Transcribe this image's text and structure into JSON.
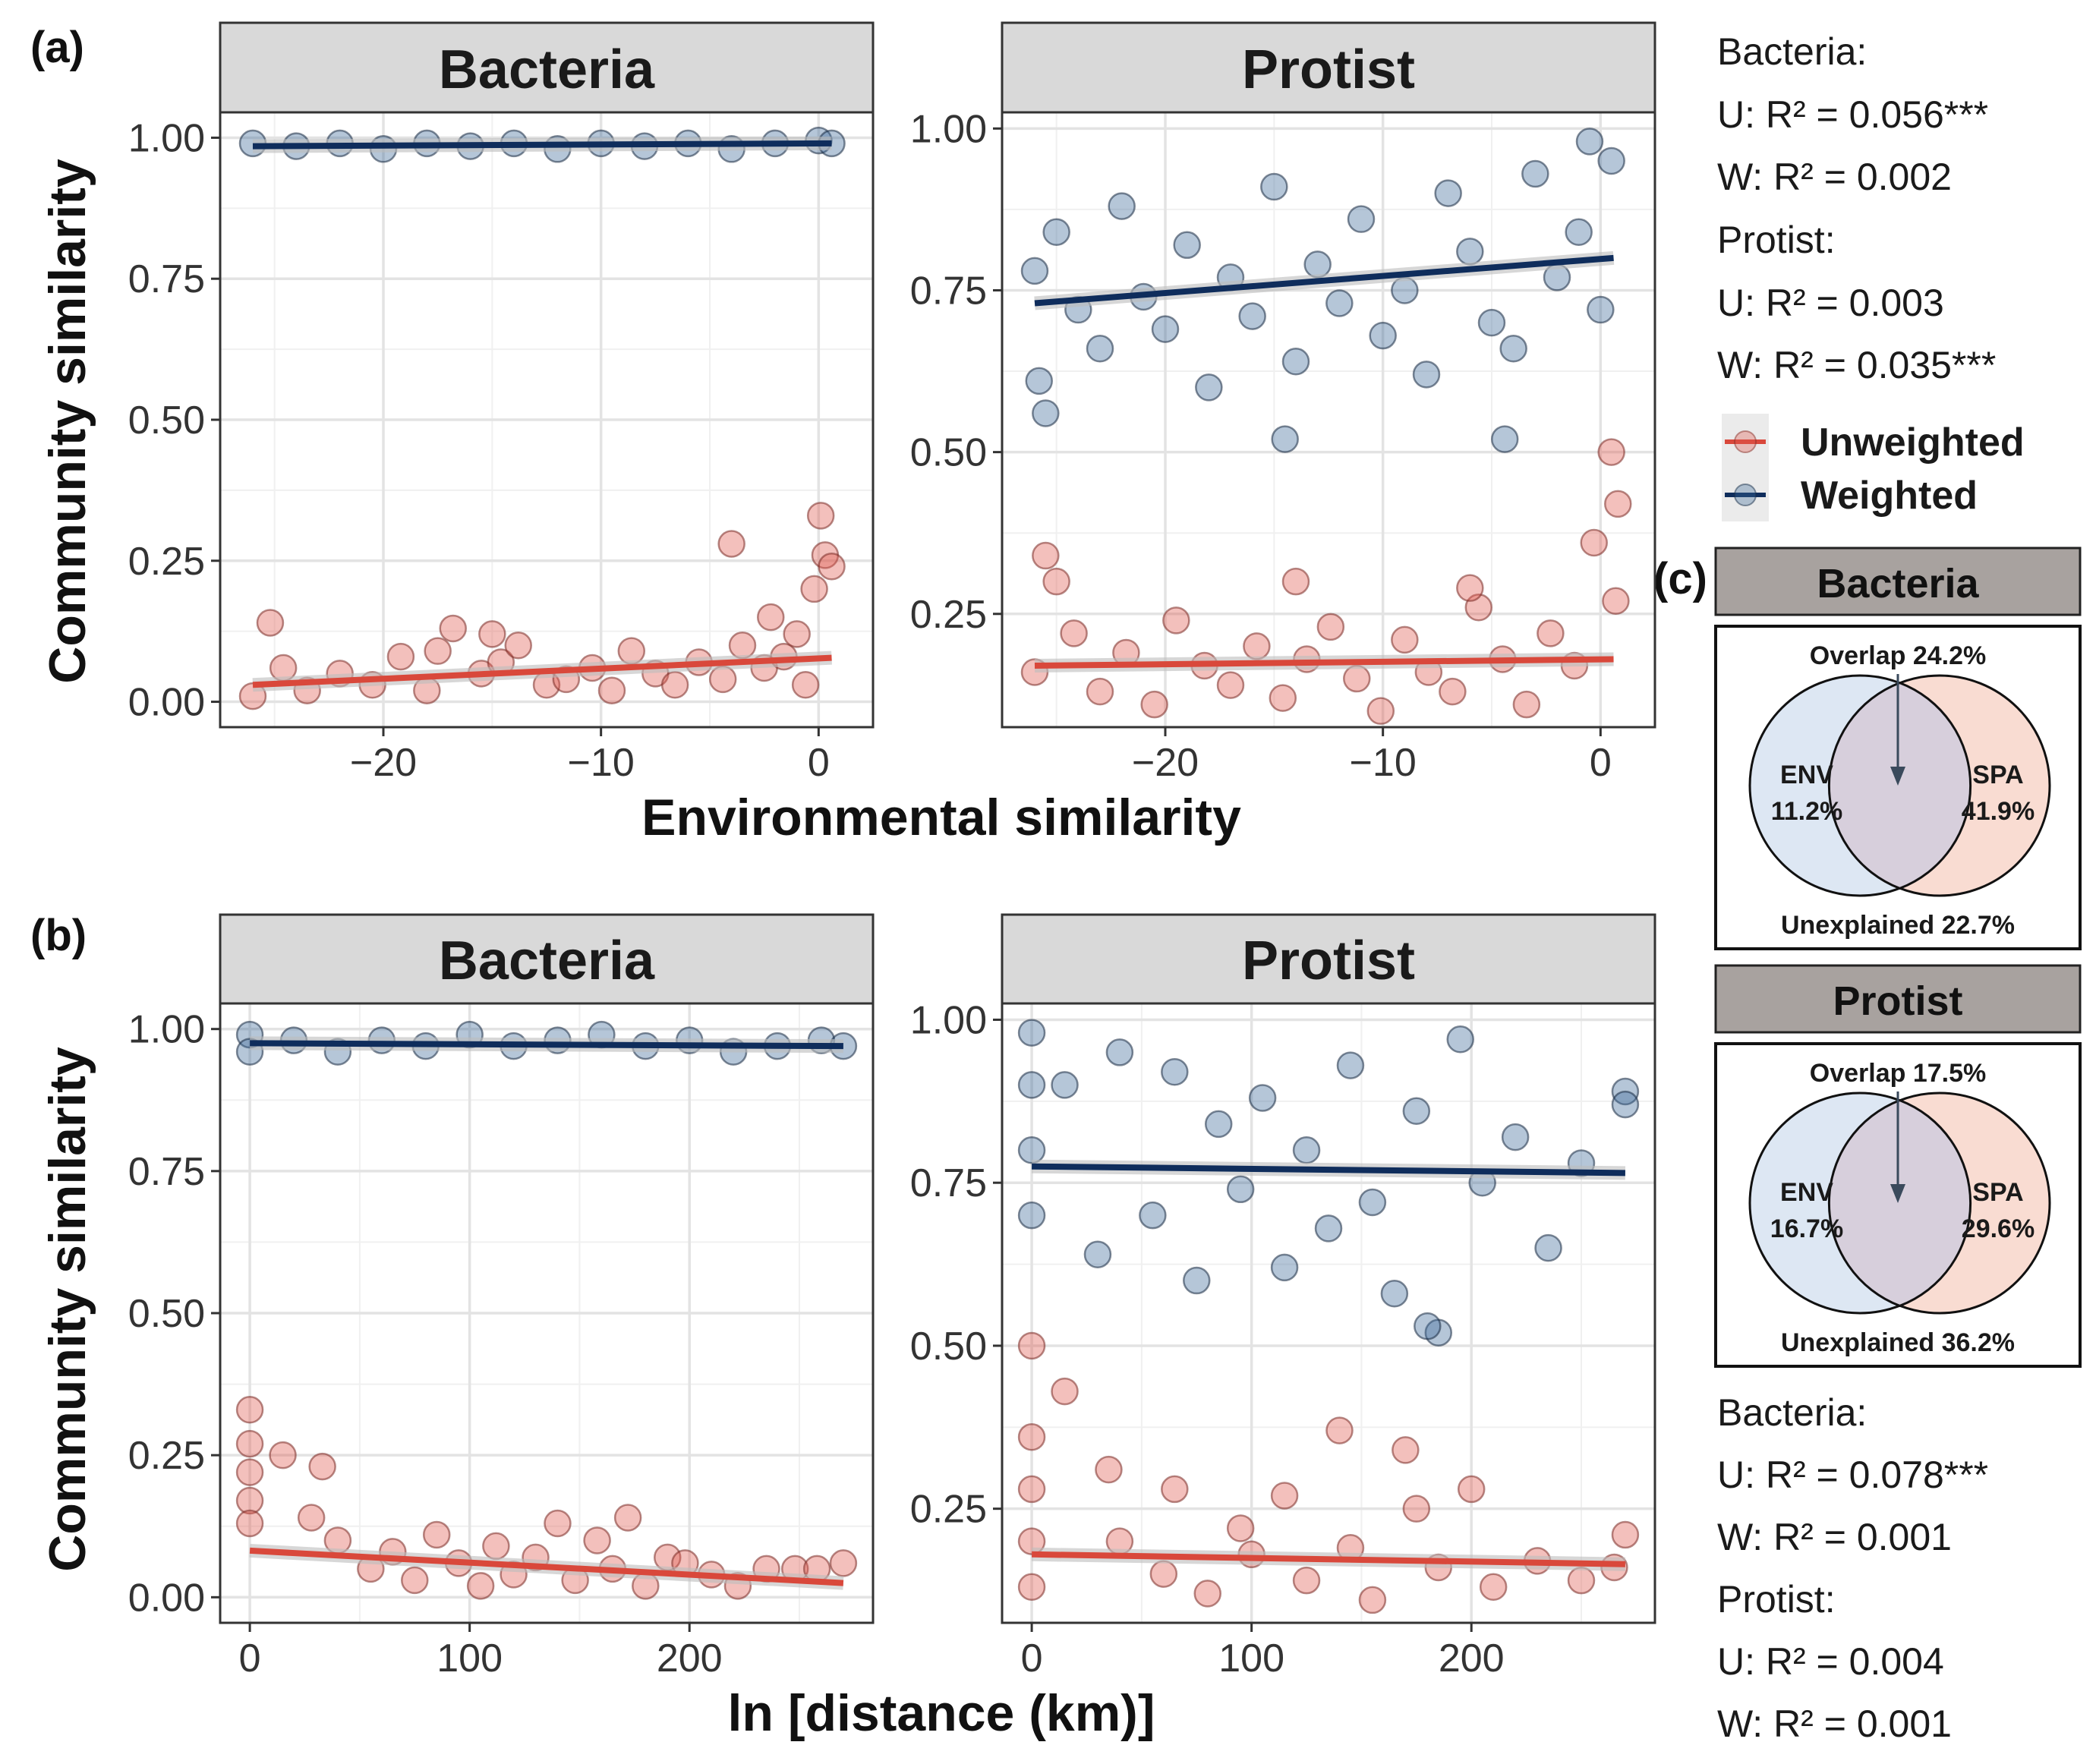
{
  "colors": {
    "unweighted": "#e05a4e",
    "unweighted_line": "#d9483b",
    "weighted": "#3d6a99",
    "weighted_line": "#0f2d5c",
    "env_fill": "#dde7f3",
    "spa_fill": "#f9dcd2",
    "overlap_fill": "#d7cfdc"
  },
  "labels": {
    "panel_a": "(a)",
    "panel_b": "(b)",
    "panel_c": "(c)",
    "ylabel": "Community similarity",
    "xlabel_a": "Environmental similarity",
    "xlabel_b": "ln [distance (km)]"
  },
  "stats_a": {
    "bacteria_head": "Bacteria:",
    "bacteria_u": "U: R² = 0.056***",
    "bacteria_w": "W: R² = 0.002",
    "protist_head": "Protist:",
    "protist_u": "U: R² = 0.003",
    "protist_w": "W: R² = 0.035***"
  },
  "stats_b": {
    "bacteria_head": "Bacteria:",
    "bacteria_u": "U: R² = 0.078***",
    "bacteria_w": "W: R² = 0.001",
    "protist_head": "Protist:",
    "protist_u": "U: R² = 0.004",
    "protist_w": "W: R² = 0.001"
  },
  "legend": {
    "unweighted": "Unweighted",
    "weighted": "Weighted"
  },
  "venn": [
    {
      "title": "Bacteria",
      "overlap": "Overlap 24.2%",
      "env": "ENV",
      "env_val": "11.2%",
      "spa": "SPA",
      "spa_val": "41.9%",
      "unexplained": "Unexplained 22.7%"
    },
    {
      "title": "Protist",
      "overlap": "Overlap 17.5%",
      "env": "ENV",
      "env_val": "16.7%",
      "spa": "SPA",
      "spa_val": "29.6%",
      "unexplained": "Unexplained 36.2%"
    }
  ],
  "chart_data": [
    {
      "id": "a_bacteria",
      "type": "scatter",
      "title": "Bacteria",
      "xlabel": "Environmental similarity",
      "ylabel": "Community similarity",
      "xlim": [
        -27.5,
        2.5
      ],
      "ylim": [
        -0.045,
        1.045
      ],
      "xticks": [
        -20,
        -10,
        0
      ],
      "xtick_labels": [
        "−20",
        "−10",
        "0"
      ],
      "yticks": [
        0,
        0.25,
        0.5,
        0.75,
        1.0
      ],
      "ytick_labels": [
        "0.00",
        "0.25",
        "0.50",
        "0.75",
        "1.00"
      ],
      "series": [
        {
          "name": "Unweighted",
          "x": [
            -26,
            -25.2,
            -24.6,
            -23.5,
            -22,
            -20.5,
            -19.2,
            -18,
            -16.8,
            -15.5,
            -14.6,
            -13.8,
            -12.5,
            -11.6,
            -10.4,
            -9.5,
            -8.6,
            -7.5,
            -6.6,
            -5.5,
            -4.4,
            -3.5,
            -2.5,
            -1.6,
            -0.6,
            -0.2,
            0.3,
            0.6,
            -4,
            -2.2,
            -1,
            0.1,
            -15,
            -17.5
          ],
          "y": [
            0.01,
            0.14,
            0.06,
            0.02,
            0.05,
            0.03,
            0.08,
            0.02,
            0.13,
            0.05,
            0.07,
            0.1,
            0.03,
            0.04,
            0.06,
            0.02,
            0.09,
            0.05,
            0.03,
            0.07,
            0.04,
            0.1,
            0.06,
            0.08,
            0.03,
            0.2,
            0.26,
            0.24,
            0.28,
            0.15,
            0.12,
            0.33,
            0.12,
            0.09
          ],
          "fit": [
            [
              -26,
              0.03
            ],
            [
              0.6,
              0.078
            ]
          ]
        },
        {
          "name": "Weighted",
          "x": [
            -26,
            -24,
            -22,
            -20,
            -18,
            -16,
            -14,
            -12,
            -10,
            -8,
            -6,
            -4,
            -2,
            0,
            0.6
          ],
          "y": [
            0.99,
            0.985,
            0.99,
            0.98,
            0.99,
            0.985,
            0.99,
            0.98,
            0.99,
            0.985,
            0.99,
            0.98,
            0.99,
            0.995,
            0.99
          ],
          "fit": [
            [
              -26,
              0.985
            ],
            [
              0.6,
              0.99
            ]
          ]
        }
      ]
    },
    {
      "id": "a_protist",
      "type": "scatter",
      "title": "Protist",
      "xlabel": "Environmental similarity",
      "ylabel": "Community similarity",
      "xlim": [
        -27.5,
        2.5
      ],
      "ylim": [
        0.075,
        1.025
      ],
      "xticks": [
        -20,
        -10,
        0
      ],
      "xtick_labels": [
        "−20",
        "−10",
        "0"
      ],
      "yticks": [
        0.25,
        0.5,
        0.75,
        1.0
      ],
      "ytick_labels": [
        "0.25",
        "0.50",
        "0.75",
        "1.00"
      ],
      "series": [
        {
          "name": "Unweighted",
          "x": [
            -26,
            -25,
            -24.2,
            -23,
            -21.8,
            -20.5,
            -19.5,
            -18.2,
            -17,
            -15.8,
            -14.6,
            -13.5,
            -12.4,
            -11.2,
            -10.1,
            -9,
            -7.9,
            -6.8,
            -5.6,
            -4.5,
            -3.4,
            -2.3,
            -1.2,
            -0.3,
            0.5,
            0.8,
            0.7,
            -25.5,
            -14,
            -6
          ],
          "y": [
            0.16,
            0.3,
            0.22,
            0.13,
            0.19,
            0.11,
            0.24,
            0.17,
            0.14,
            0.2,
            0.12,
            0.18,
            0.23,
            0.15,
            0.1,
            0.21,
            0.16,
            0.13,
            0.26,
            0.18,
            0.11,
            0.22,
            0.17,
            0.36,
            0.5,
            0.42,
            0.27,
            0.34,
            0.3,
            0.29
          ],
          "fit": [
            [
              -26,
              0.17
            ],
            [
              0.6,
              0.18
            ]
          ]
        },
        {
          "name": "Weighted",
          "x": [
            -26,
            -25.5,
            -25,
            -24,
            -23,
            -22,
            -21,
            -20,
            -19,
            -18,
            -17,
            -16,
            -15,
            -14,
            -13,
            -12,
            -11,
            -10,
            -9,
            -8,
            -7,
            -6,
            -5,
            -4,
            -3,
            -2,
            -1,
            -0.5,
            0,
            0.5,
            -14.5,
            -4.4,
            -25.8
          ],
          "y": [
            0.78,
            0.56,
            0.84,
            0.72,
            0.66,
            0.88,
            0.74,
            0.69,
            0.82,
            0.6,
            0.77,
            0.71,
            0.91,
            0.64,
            0.79,
            0.73,
            0.86,
            0.68,
            0.75,
            0.62,
            0.9,
            0.81,
            0.7,
            0.66,
            0.93,
            0.77,
            0.84,
            0.98,
            0.72,
            0.95,
            0.52,
            0.52,
            0.61
          ],
          "fit": [
            [
              -26,
              0.73
            ],
            [
              0.6,
              0.8
            ]
          ]
        }
      ]
    },
    {
      "id": "b_bacteria",
      "type": "scatter",
      "title": "Bacteria",
      "xlabel": "ln [distance (km)]",
      "ylabel": "Community similarity",
      "xlim": [
        -13.5,
        283.5
      ],
      "ylim": [
        -0.045,
        1.045
      ],
      "xticks": [
        0,
        100,
        200
      ],
      "xtick_labels": [
        "0",
        "100",
        "200"
      ],
      "yticks": [
        0,
        0.25,
        0.5,
        0.75,
        1.0
      ],
      "ytick_labels": [
        "0.00",
        "0.25",
        "0.50",
        "0.75",
        "1.00"
      ],
      "series": [
        {
          "name": "Unweighted",
          "x": [
            0,
            0,
            0,
            0,
            0,
            15,
            28,
            33,
            40,
            55,
            65,
            75,
            85,
            95,
            105,
            112,
            120,
            130,
            140,
            148,
            158,
            165,
            172,
            180,
            190,
            198,
            210,
            222,
            235,
            248,
            258,
            270
          ],
          "y": [
            0.33,
            0.27,
            0.22,
            0.17,
            0.13,
            0.25,
            0.14,
            0.23,
            0.1,
            0.05,
            0.08,
            0.03,
            0.11,
            0.06,
            0.02,
            0.09,
            0.04,
            0.07,
            0.13,
            0.03,
            0.1,
            0.05,
            0.14,
            0.02,
            0.07,
            0.06,
            0.04,
            0.02,
            0.05,
            0.05,
            0.05,
            0.06
          ],
          "fit": [
            [
              0,
              0.082
            ],
            [
              270,
              0.025
            ]
          ]
        },
        {
          "name": "Weighted",
          "x": [
            0,
            0,
            20,
            40,
            60,
            80,
            100,
            120,
            140,
            160,
            180,
            200,
            220,
            240,
            260,
            270
          ],
          "y": [
            0.99,
            0.96,
            0.98,
            0.96,
            0.98,
            0.97,
            0.99,
            0.97,
            0.98,
            0.99,
            0.97,
            0.98,
            0.96,
            0.97,
            0.98,
            0.97
          ],
          "fit": [
            [
              0,
              0.975
            ],
            [
              270,
              0.97
            ]
          ]
        }
      ]
    },
    {
      "id": "b_protist",
      "type": "scatter",
      "title": "Protist",
      "xlabel": "ln [distance (km)]",
      "ylabel": "Community similarity",
      "xlim": [
        -13.5,
        283.5
      ],
      "ylim": [
        0.075,
        1.025
      ],
      "xticks": [
        0,
        100,
        200
      ],
      "xtick_labels": [
        "0",
        "100",
        "200"
      ],
      "yticks": [
        0.25,
        0.5,
        0.75,
        1.0
      ],
      "ytick_labels": [
        "0.25",
        "0.50",
        "0.75",
        "1.00"
      ],
      "series": [
        {
          "name": "Unweighted",
          "x": [
            0,
            0,
            0,
            0,
            0,
            15,
            35,
            40,
            60,
            65,
            80,
            95,
            100,
            115,
            125,
            140,
            145,
            155,
            170,
            175,
            185,
            200,
            210,
            230,
            250,
            270,
            265
          ],
          "y": [
            0.5,
            0.36,
            0.28,
            0.2,
            0.13,
            0.43,
            0.31,
            0.2,
            0.15,
            0.28,
            0.12,
            0.22,
            0.18,
            0.27,
            0.14,
            0.37,
            0.19,
            0.11,
            0.34,
            0.25,
            0.16,
            0.28,
            0.13,
            0.17,
            0.14,
            0.21,
            0.16
          ],
          "fit": [
            [
              0,
              0.18
            ],
            [
              270,
              0.165
            ]
          ]
        },
        {
          "name": "Weighted",
          "x": [
            0,
            0,
            0,
            0,
            15,
            30,
            40,
            55,
            65,
            75,
            85,
            95,
            105,
            115,
            125,
            135,
            145,
            155,
            165,
            175,
            185,
            195,
            205,
            220,
            235,
            250,
            270,
            270,
            180
          ],
          "y": [
            0.98,
            0.9,
            0.8,
            0.7,
            0.9,
            0.64,
            0.95,
            0.7,
            0.92,
            0.6,
            0.84,
            0.74,
            0.88,
            0.62,
            0.8,
            0.68,
            0.93,
            0.72,
            0.58,
            0.86,
            0.52,
            0.97,
            0.75,
            0.82,
            0.65,
            0.78,
            0.89,
            0.87,
            0.53
          ],
          "fit": [
            [
              0,
              0.775
            ],
            [
              270,
              0.765
            ]
          ]
        }
      ]
    }
  ]
}
